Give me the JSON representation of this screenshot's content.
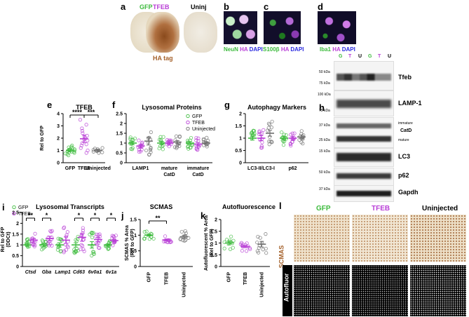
{
  "panel_labels": {
    "a": "a",
    "b": "b",
    "c": "c",
    "d": "d",
    "e": "e",
    "f": "f",
    "g": "g",
    "h": "h",
    "i": "i",
    "j": "j",
    "k": "k",
    "l": "l"
  },
  "panel_a": {
    "gfp": "GFP",
    "tfeb": "TFEB",
    "uninj": "Uninj",
    "ha_tag": "HA tag"
  },
  "panel_b": {
    "neun": "NeuN",
    "ha": "HA",
    "dapi": "DAPI"
  },
  "panel_c": {
    "s100b": "S100β",
    "ha": "HA",
    "dapi": "DAPI"
  },
  "panel_d": {
    "iba1": "Iba1",
    "ha": "HA",
    "dapi": "DAPI"
  },
  "panel_h": {
    "lanes": [
      "G",
      "T",
      "U",
      "G",
      "T",
      "U"
    ],
    "rows": [
      {
        "name": "Tfeb",
        "kda": [
          "50 kDa",
          "75 kDa"
        ]
      },
      {
        "name": "LAMP-1",
        "kda": [
          "100 kDa",
          "75 kDa"
        ]
      },
      {
        "name": "CatD",
        "kda": [
          "37 kDa",
          "25 kDa"
        ],
        "sub": [
          "immature",
          "mature"
        ]
      },
      {
        "name": "LC3",
        "kda": [
          "15 kDa"
        ]
      },
      {
        "name": "p62",
        "kda": [
          "50 kDa"
        ]
      },
      {
        "name": "Gapdh",
        "kda": [
          "37 kDa"
        ]
      }
    ]
  },
  "panel_l": {
    "gfp": "GFP",
    "tfeb": "TFEB",
    "uninj": "Uninjected",
    "scmas": "SCMAS",
    "autofluor": "Autofluor"
  },
  "colors": {
    "gfp": "#3dbb3d",
    "tfeb": "#b83dd6",
    "uninj": "#6e6e6e",
    "ha": "#a5622c",
    "scmas": "#a5622c"
  },
  "chart_data": [
    {
      "type": "scatter",
      "panel": "e",
      "title": "TFEB",
      "ylabel": "Rel to GFP",
      "categories": [
        "GFP",
        "TFEB",
        "Uninjected"
      ],
      "ylim": [
        0,
        4
      ],
      "yticks": [
        0,
        1,
        2,
        3,
        4
      ],
      "means": [
        1.0,
        1.95,
        1.0
      ],
      "sems": [
        0.1,
        0.3,
        0.1
      ],
      "points": [
        [
          0.6,
          0.7,
          0.8,
          0.85,
          0.9,
          0.95,
          1.0,
          1.0,
          1.05,
          1.1,
          1.1,
          1.2,
          1.25,
          1.3,
          1.4,
          0.75,
          0.9
        ],
        [
          0.8,
          1.0,
          1.2,
          1.4,
          1.6,
          1.8,
          2.0,
          2.2,
          2.4,
          2.6,
          3.1,
          3.5,
          1.5,
          1.9,
          2.1,
          2.8
        ],
        [
          0.8,
          0.9,
          0.95,
          1.0,
          1.05,
          1.1,
          1.15,
          1.2,
          0.85,
          1.0
        ]
      ],
      "significance": [
        {
          "pair": [
            0,
            1
          ],
          "label": "****"
        },
        {
          "pair": [
            1,
            2
          ],
          "label": "***"
        }
      ]
    },
    {
      "type": "scatter",
      "panel": "f",
      "title": "Lysosomal Proteins",
      "categories": [
        "LAMP1",
        "mature CatD",
        "immature CatD"
      ],
      "ylim": [
        0,
        2.5
      ],
      "yticks": [
        0,
        0.5,
        1,
        1.5,
        2,
        2.5
      ],
      "series": [
        {
          "name": "GFP",
          "means": [
            1.0,
            1.0,
            1.0
          ],
          "sems": [
            0.08,
            0.08,
            0.08
          ]
        },
        {
          "name": "TFEB",
          "means": [
            0.85,
            1.0,
            0.95
          ],
          "sems": [
            0.08,
            0.07,
            0.08
          ]
        },
        {
          "name": "Uninjected",
          "means": [
            1.1,
            1.05,
            1.0
          ],
          "sems": [
            0.2,
            0.08,
            0.07
          ]
        }
      ],
      "legend": [
        "GFP",
        "TFEB",
        "Uninjected"
      ]
    },
    {
      "type": "scatter",
      "panel": "g",
      "title": "Autophagy Markers",
      "categories": [
        "LC3-II/LC3-I",
        "p62"
      ],
      "ylim": [
        0,
        2
      ],
      "yticks": [
        0,
        0.5,
        1,
        1.5,
        2
      ],
      "series": [
        {
          "name": "GFP",
          "means": [
            1.0,
            1.0
          ],
          "sems": [
            0.08,
            0.07
          ]
        },
        {
          "name": "TFEB",
          "means": [
            1.0,
            1.0
          ],
          "sems": [
            0.1,
            0.08
          ]
        },
        {
          "name": "Uninjected",
          "means": [
            1.2,
            1.05
          ],
          "sems": [
            0.12,
            0.08
          ]
        }
      ]
    },
    {
      "type": "scatter",
      "panel": "i",
      "title": "Lysosomal Transcripts",
      "ylabel": "Rel to GFP (DDCt)",
      "categories": [
        "Ctsd",
        "Gba",
        "Lamp1",
        "Cd63",
        "6v0a1",
        "6v1a"
      ],
      "ylim": [
        0,
        2.5
      ],
      "yticks": [
        0,
        0.5,
        1,
        1.5,
        2,
        2.5
      ],
      "series": [
        {
          "name": "GFP",
          "means": [
            1.0,
            1.0,
            1.0,
            1.0,
            1.0,
            1.0
          ],
          "sems": [
            0.07,
            0.08,
            0.1,
            0.1,
            0.15,
            0.05
          ]
        },
        {
          "name": "TFEB",
          "means": [
            1.22,
            1.3,
            1.22,
            1.35,
            1.25,
            1.2
          ],
          "sems": [
            0.08,
            0.1,
            0.15,
            0.18,
            0.1,
            0.06
          ]
        }
      ],
      "legend": [
        "GFP",
        "TFEB"
      ],
      "significance": [
        {
          "category": "Ctsd",
          "label": "**"
        },
        {
          "category": "Gba",
          "label": "*"
        },
        {
          "category": "Cd63",
          "label": "*"
        },
        {
          "category": "6v0a1",
          "label": "*"
        },
        {
          "category": "6v1a",
          "label": "*"
        }
      ]
    },
    {
      "type": "scatter",
      "panel": "j",
      "title": "SCMAS",
      "ylabel": "SCMAS % Area (Rel to GFP)",
      "categories": [
        "GFP",
        "TFEB",
        "Uninjected"
      ],
      "ylim": [
        0,
        1.5
      ],
      "yticks": [
        0,
        0.5,
        1,
        1.5
      ],
      "means": [
        1.0,
        0.85,
        0.95
      ],
      "sems": [
        0.03,
        0.03,
        0.05
      ],
      "significance": [
        {
          "pair": [
            0,
            1
          ],
          "label": "**"
        }
      ]
    },
    {
      "type": "scatter",
      "panel": "k",
      "title": "Autofluorescence",
      "ylabel": "Autofluorescent % Area (Rel to GFP)",
      "categories": [
        "GFP",
        "TFEB",
        "Uninjected"
      ],
      "ylim": [
        0,
        2
      ],
      "yticks": [
        0,
        0.5,
        1,
        1.5,
        2
      ],
      "means": [
        1.0,
        0.85,
        0.95
      ],
      "sems": [
        0.08,
        0.05,
        0.12
      ]
    }
  ]
}
